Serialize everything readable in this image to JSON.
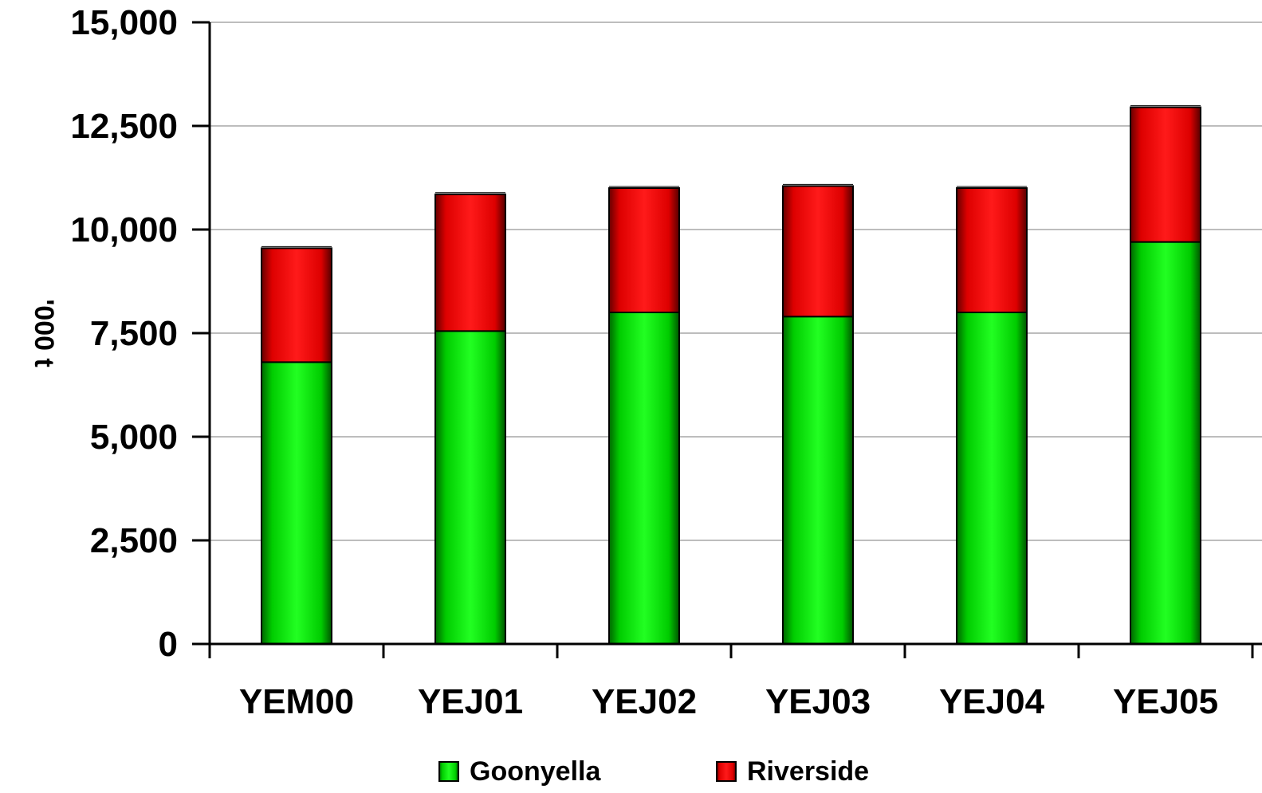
{
  "chart_data": {
    "type": "bar",
    "stacked": true,
    "title": "",
    "xlabel": "",
    "ylabel": "'000 t",
    "ylim": [
      0,
      15000
    ],
    "yticks": [
      0,
      2500,
      5000,
      7500,
      10000,
      12500,
      15000
    ],
    "ytick_labels": [
      "0",
      "2,500",
      "5,000",
      "7,500",
      "10,000",
      "12,500",
      "15,000"
    ],
    "grid": true,
    "legend_position": "bottom",
    "categories": [
      "YEM00",
      "YEJ01",
      "YEJ02",
      "YEJ03",
      "YEJ04",
      "YEJ05"
    ],
    "series": [
      {
        "name": "Goonyella",
        "color": "#00dd00",
        "values": [
          6800,
          7550,
          8000,
          7900,
          8000,
          9700
        ]
      },
      {
        "name": "Riverside",
        "color": "#ee0000",
        "values": [
          2750,
          3300,
          3000,
          3150,
          3000,
          3250
        ]
      }
    ]
  }
}
